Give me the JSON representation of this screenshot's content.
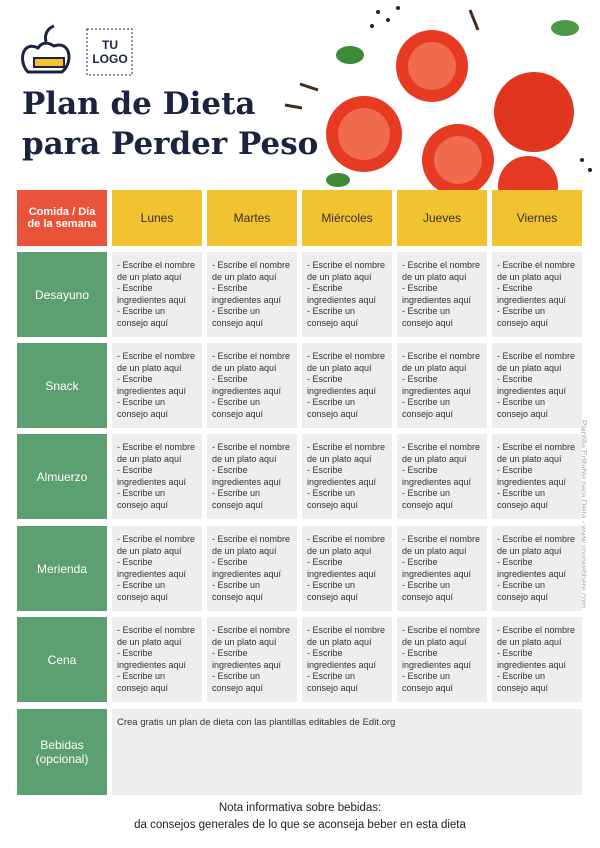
{
  "logo": {
    "text": "TU LOGO"
  },
  "title_lines": [
    "Plan de Dieta",
    "para Perder Peso"
  ],
  "table": {
    "corner": "Comida / Día de la semana",
    "columns": [
      "Lunes",
      "Martes",
      "Miércoles",
      "Jueves",
      "Viernes"
    ],
    "rows": [
      {
        "label": "Desayuno",
        "cells": [
          "- Escribe el nombre de un plato aquí\n- Escribe ingredientes aquí\n- Escribe un consejo aquí",
          "- Escribe el nombre de un plato aquí\n- Escribe ingredientes aquí\n- Escribe un consejo aquí",
          "- Escribe el nombre de un plato aquí\n- Escribe ingredientes aquí\n- Escribe un consejo aquí",
          "- Escribe el nombre de un plato aquí\n- Escribe ingredientes aquí\n- Escribe un consejo aquí",
          "- Escribe el nombre de un plato aquí\n- Escribe ingredientes aquí\n- Escribe un consejo aquí"
        ]
      },
      {
        "label": "Snack",
        "cells": [
          "- Escribe el nombre de un plato aquí\n- Escribe ingredientes aquí\n- Escribe un consejo aquí",
          "- Escribe el nombre de un plato aquí\n- Escribe ingredientes aquí\n- Escribe un consejo aquí",
          "- Escribe el nombre de un plato aquí\n- Escribe ingredientes aquí\n- Escribe un consejo aquí",
          "- Escribe el nombre de un plato aquí\n- Escribe ingredientes aquí\n- Escribe un consejo aquí",
          "- Escribe el nombre de un plato aquí\n- Escribe ingredientes aquí\n- Escribe un consejo aquí"
        ]
      },
      {
        "label": "Almuerzo",
        "cells": [
          "- Escribe el nombre de un plato aquí\n- Escribe ingredientes aquí\n- Escribe un consejo aquí",
          "- Escribe el nombre de un plato aquí\n- Escribe ingredientes aquí\n- Escribe un consejo aquí",
          "- Escribe el nombre de un plato aquí\n- Escribe ingredientes aquí\n- Escribe un consejo aquí",
          "- Escribe el nombre de un plato aquí\n- Escribe ingredientes aquí\n- Escribe un consejo aquí",
          "- Escribe el nombre de un plato aquí\n- Escribe ingredientes aquí\n- Escribe un consejo aquí"
        ]
      },
      {
        "label": "Merienda",
        "cells": [
          "- Escribe el nombre de un plato aquí\n- Escribe ingredientes aquí\n- Escribe un consejo aquí",
          "- Escribe el nombre de un plato aquí\n- Escribe ingredientes aquí\n- Escribe un consejo aquí",
          "- Escribe el nombre de un plato aquí\n- Escribe ingredientes aquí\n- Escribe un consejo aquí",
          "- Escribe el nombre de un plato aquí\n- Escribe ingredientes aquí\n- Escribe un consejo aquí",
          "- Escribe el nombre de un plato aquí\n- Escribe ingredientes aquí\n- Escribe un consejo aquí"
        ]
      },
      {
        "label": "Cena",
        "cells": [
          "- Escribe el nombre de un plato aquí\n- Escribe ingredientes aquí\n- Escribe un consejo aquí",
          "- Escribe el nombre de un plato aquí\n- Escribe ingredientes aquí\n- Escribe un consejo aquí",
          "- Escribe el nombre de un plato aquí\n- Escribe ingredientes aquí\n- Escribe un consejo aquí",
          "- Escribe el nombre de un plato aquí\n- Escribe ingredientes aquí\n- Escribe un consejo aquí",
          "- Escribe el nombre de un plato aquí\n- Escribe ingredientes aquí\n- Escribe un consejo aquí"
        ]
      }
    ],
    "drinks": {
      "label": "Bebidas (opcional)",
      "text": "Crea gratis un plan de dieta con las plantillas editables de Edit.org"
    }
  },
  "note_lines": [
    "Nota informativa sobre bebidas:",
    "da consejos generales de lo que se aconseja beber en esta dieta"
  ],
  "side_text": "Plantilla Editable para Dieta - www.yourwebhere.com"
}
